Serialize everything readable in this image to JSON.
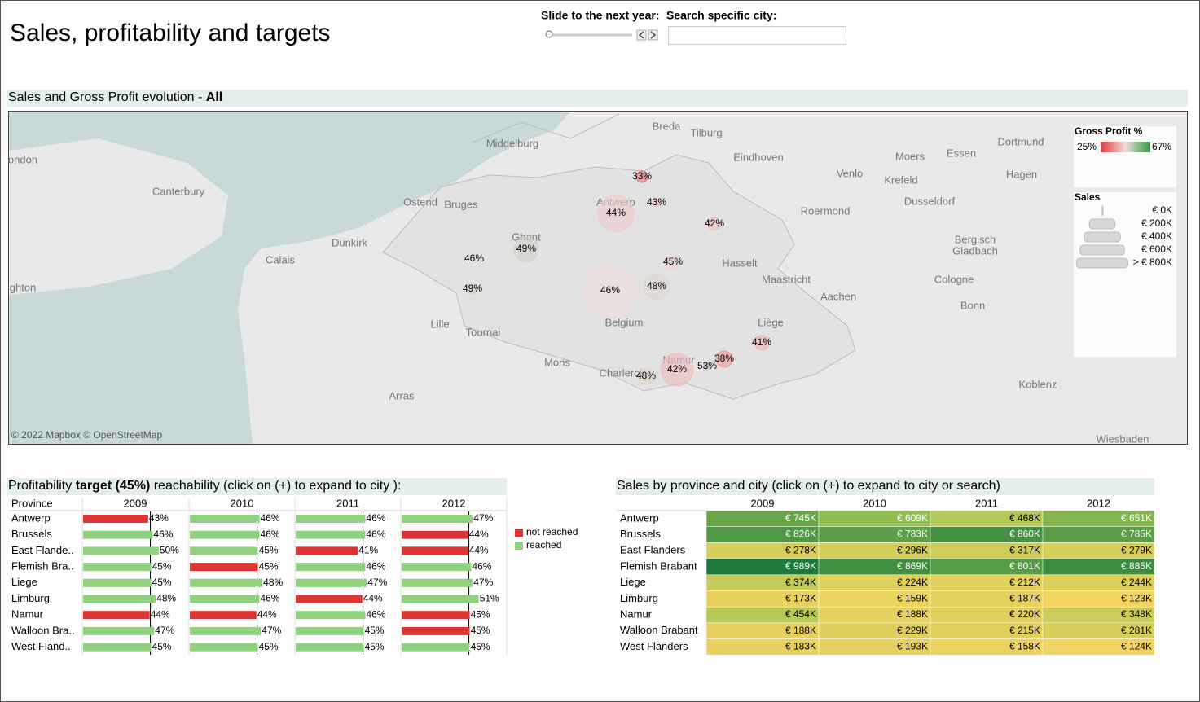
{
  "title": "Sales, profitability and targets",
  "controls": {
    "slider_label": "Slide to the next year:",
    "search_label": "Search specific city:"
  },
  "map": {
    "header": "Sales and Gross Profit evolution - ",
    "header_bold": "All",
    "attribution": "© 2022 Mapbox © OpenStreetMap",
    "places": [
      "Breda",
      "Tilburg",
      "Middelburg",
      "Eindhoven",
      "Dortmund",
      "Essen",
      "Moers",
      "Hagen",
      "Krefeld",
      "Venlo",
      "Dusseldorf",
      "Roermond",
      "Canterbury",
      "Ostend",
      "Bruges",
      "Dunkirk",
      "Calais",
      "Ghent",
      "Hasselt",
      "Maastricht",
      "Aachen",
      "Bergisch",
      "Gladbach",
      "Cologne",
      "Bonn",
      "Lille",
      "Tournai",
      "Belgium",
      "Liège",
      "Mons",
      "Charleroi",
      "Namur",
      "Arras",
      "Koblenz",
      "Wiesbaden",
      "ondon",
      "ghton",
      "Antwerp"
    ],
    "bubbles": {
      "values": [
        33,
        44,
        43,
        42,
        49,
        46,
        45,
        48,
        46,
        49,
        41,
        38,
        53,
        42,
        48
      ],
      "value_labels": [
        "33%",
        "44%",
        "43%",
        "42%",
        "49%",
        "46%",
        "45%",
        "48%",
        "46%",
        "49%",
        "41%",
        "38%",
        "53%",
        "42%",
        "48%"
      ],
      "sales": [
        40,
        390,
        20,
        52,
        181,
        13,
        65,
        206,
        825,
        29,
        65,
        81,
        13,
        322,
        81
      ]
    },
    "legend": {
      "gp_title": "Gross Profit %",
      "gp_min": {
        "value": 25,
        "label": "25%"
      },
      "gp_max": {
        "value": 67,
        "label": "67%"
      },
      "gp_colors": [
        "#e03c3c",
        "#f0dcdc",
        "#2f9a45"
      ],
      "sales_title": "Sales",
      "sales_ticks": [
        {
          "value": 0,
          "label": "€ 0K"
        },
        {
          "value": 200,
          "label": "€ 200K"
        },
        {
          "value": 400,
          "label": "€ 400K"
        },
        {
          "value": 600,
          "label": "€ 600K"
        },
        {
          "value": 800,
          "label": "≥ € 800K"
        }
      ]
    }
  },
  "profitability": {
    "header": "Profitability ",
    "target": {
      "value": 45,
      "label": "target (45%)"
    },
    "header_rest": " reachability  (click on (+) to expand to city ):",
    "row_header": "Province",
    "columns": [
      "2009",
      "2010",
      "2011",
      "2012"
    ],
    "xlim": [
      0,
      70
    ],
    "legend": [
      {
        "name": "not reached",
        "color": "#e03333"
      },
      {
        "name": "reached",
        "color": "#8fd17f"
      }
    ],
    "rows": [
      {
        "name": "Antwerp",
        "values": [
          43,
          46,
          46,
          47
        ],
        "value_labels": [
          "43%",
          "46%",
          "46%",
          "47%"
        ],
        "reached": [
          false,
          true,
          true,
          true
        ]
      },
      {
        "name": "Brussels",
        "values": [
          46,
          46,
          46,
          44
        ],
        "value_labels": [
          "46%",
          "46%",
          "46%",
          "44%"
        ],
        "reached": [
          true,
          true,
          true,
          false
        ]
      },
      {
        "name": "East Flande..",
        "values": [
          50,
          45,
          41,
          44
        ],
        "value_labels": [
          "50%",
          "45%",
          "41%",
          "44%"
        ],
        "reached": [
          true,
          true,
          false,
          false
        ]
      },
      {
        "name": "Flemish Bra..",
        "values": [
          45,
          45,
          46,
          46
        ],
        "value_labels": [
          "45%",
          "45%",
          "46%",
          "46%"
        ],
        "reached": [
          true,
          false,
          true,
          true
        ]
      },
      {
        "name": "Liege",
        "values": [
          45,
          48,
          47,
          47
        ],
        "value_labels": [
          "45%",
          "48%",
          "47%",
          "47%"
        ],
        "reached": [
          true,
          true,
          true,
          true
        ]
      },
      {
        "name": "Limburg",
        "values": [
          48,
          46,
          44,
          51
        ],
        "value_labels": [
          "48%",
          "46%",
          "44%",
          "51%"
        ],
        "reached": [
          true,
          true,
          false,
          true
        ]
      },
      {
        "name": "Namur",
        "values": [
          44,
          44,
          46,
          45
        ],
        "value_labels": [
          "44%",
          "44%",
          "46%",
          "45%"
        ],
        "reached": [
          false,
          false,
          true,
          false
        ]
      },
      {
        "name": "Walloon Bra..",
        "values": [
          47,
          47,
          45,
          45
        ],
        "value_labels": [
          "47%",
          "47%",
          "45%",
          "45%"
        ],
        "reached": [
          true,
          true,
          true,
          false
        ]
      },
      {
        "name": "West Fland..",
        "values": [
          45,
          45,
          45,
          45
        ],
        "value_labels": [
          "45%",
          "45%",
          "45%",
          "45%"
        ],
        "reached": [
          true,
          true,
          true,
          true
        ]
      }
    ]
  },
  "sales": {
    "header": "Sales by province and city (click on (+) to expand to city or search)",
    "columns": [
      "2009",
      "2010",
      "2011",
      "2012"
    ],
    "colors": [
      "#f3d360",
      "#a3c653",
      "#1b7a3c"
    ],
    "rows": [
      {
        "name": "Antwerp",
        "values": [
          745,
          609,
          468,
          651
        ],
        "value_labels": [
          "€ 745K",
          "€ 609K",
          "€ 468K",
          "€ 651K"
        ]
      },
      {
        "name": "Brussels",
        "values": [
          826,
          783,
          860,
          785
        ],
        "value_labels": [
          "€ 826K",
          "€ 783K",
          "€ 860K",
          "€ 785K"
        ]
      },
      {
        "name": "East Flanders",
        "values": [
          278,
          296,
          317,
          279
        ],
        "value_labels": [
          "€ 278K",
          "€ 296K",
          "€ 317K",
          "€ 279K"
        ]
      },
      {
        "name": "Flemish Brabant",
        "values": [
          989,
          869,
          801,
          885
        ],
        "value_labels": [
          "€ 989K",
          "€ 869K",
          "€ 801K",
          "€ 885K"
        ]
      },
      {
        "name": "Liege",
        "values": [
          374,
          224,
          212,
          244
        ],
        "value_labels": [
          "€ 374K",
          "€ 224K",
          "€ 212K",
          "€ 244K"
        ]
      },
      {
        "name": "Limburg",
        "values": [
          173,
          159,
          187,
          123
        ],
        "value_labels": [
          "€ 173K",
          "€ 159K",
          "€ 187K",
          "€ 123K"
        ]
      },
      {
        "name": "Namur",
        "values": [
          454,
          188,
          220,
          348
        ],
        "value_labels": [
          "€ 454K",
          "€ 188K",
          "€ 220K",
          "€ 348K"
        ]
      },
      {
        "name": "Walloon Brabant",
        "values": [
          188,
          229,
          215,
          281
        ],
        "value_labels": [
          "€ 188K",
          "€ 229K",
          "€ 215K",
          "€ 281K"
        ]
      },
      {
        "name": "West Flanders",
        "values": [
          183,
          193,
          158,
          124
        ],
        "value_labels": [
          "€ 183K",
          "€ 193K",
          "€ 158K",
          "€ 124K"
        ]
      }
    ]
  }
}
